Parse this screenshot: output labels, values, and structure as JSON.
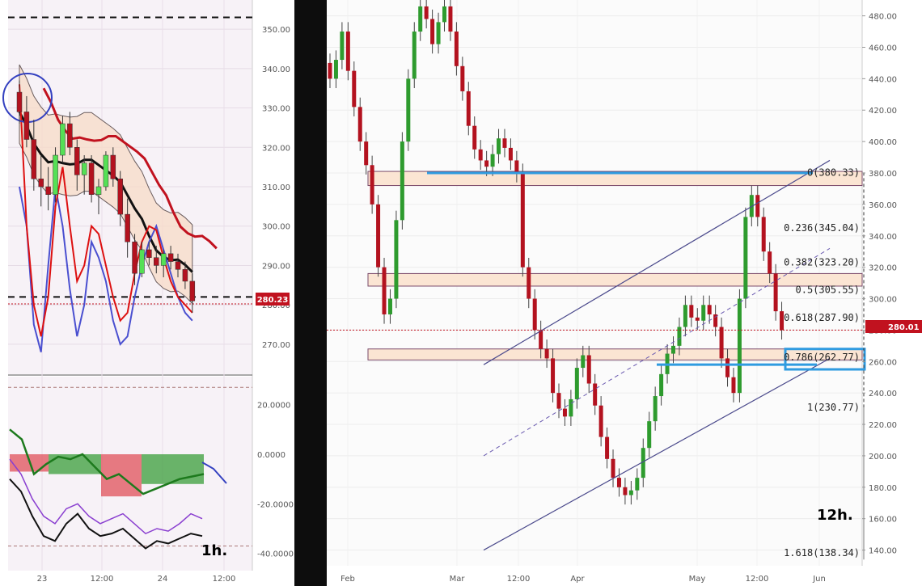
{
  "chart_data": [
    {
      "type": "candlestick",
      "panel": "1h",
      "timeframe_label": "1h.",
      "y_ticks": [
        "350.00",
        "340.00",
        "330.00",
        "320.00",
        "310.00",
        "300.00",
        "290.00",
        "280.00",
        "270.00"
      ],
      "ylim": [
        263,
        357
      ],
      "x_ticks": [
        "23",
        "12:00",
        "24",
        "12:00"
      ],
      "last_price": "280.23",
      "resistance_dashed": 353,
      "support_dashed": 282,
      "candles": [
        [
          334,
          337,
          326,
          329
        ],
        [
          329,
          333,
          320,
          322
        ],
        [
          322,
          327,
          309,
          312
        ],
        [
          312,
          318,
          305,
          310
        ],
        [
          310,
          315,
          304,
          308
        ],
        [
          308,
          320,
          306,
          318
        ],
        [
          318,
          328,
          316,
          326
        ],
        [
          326,
          329,
          318,
          320
        ],
        [
          320,
          322,
          309,
          313
        ],
        [
          313,
          318,
          308,
          316
        ],
        [
          316,
          318,
          306,
          308
        ],
        [
          308,
          312,
          303,
          310
        ],
        [
          310,
          319,
          309,
          318
        ],
        [
          318,
          320,
          310,
          312
        ],
        [
          312,
          314,
          300,
          303
        ],
        [
          303,
          307,
          292,
          296
        ],
        [
          296,
          298,
          285,
          288
        ],
        [
          288,
          296,
          287,
          294
        ],
        [
          294,
          296,
          290,
          292
        ],
        [
          292,
          295,
          288,
          290
        ],
        [
          290,
          294,
          287,
          293
        ],
        [
          293,
          295,
          289,
          291
        ],
        [
          291,
          293,
          287,
          289
        ],
        [
          289,
          291,
          284,
          286
        ],
        [
          286,
          288,
          278,
          281
        ]
      ],
      "oscillator": {
        "y_ticks": [
          "20.0000",
          "0.0000",
          "-20.0000",
          "-40.0000"
        ],
        "ylim": [
          -45,
          30
        ]
      }
    },
    {
      "type": "candlestick",
      "panel": "12h",
      "timeframe_label": "12h.",
      "y_ticks": [
        "480.00",
        "460.00",
        "440.00",
        "420.00",
        "400.00",
        "380.00",
        "360.00",
        "340.00",
        "320.00",
        "300.00",
        "280.00",
        "260.00",
        "240.00",
        "220.00",
        "200.00",
        "180.00",
        "160.00",
        "140.00"
      ],
      "ylim": [
        130,
        487
      ],
      "x_ticks": [
        "Feb",
        "Mar",
        "12:00",
        "Apr",
        "May",
        "12:00",
        "Jun"
      ],
      "last_price": "280.01",
      "closes": [
        440,
        452,
        470,
        445,
        422,
        400,
        385,
        360,
        320,
        290,
        300,
        350,
        400,
        440,
        470,
        486,
        478,
        462,
        476,
        486,
        470,
        448,
        432,
        410,
        395,
        388,
        384,
        392,
        402,
        396,
        388,
        380,
        320,
        300,
        280,
        268,
        262,
        240,
        230,
        225,
        236,
        256,
        264,
        246,
        232,
        212,
        198,
        186,
        180,
        175,
        178,
        186,
        205,
        222,
        238,
        252,
        265,
        270,
        282,
        296,
        288,
        286,
        296,
        290,
        282,
        262,
        250,
        240,
        300,
        352,
        366,
        352,
        330,
        316,
        292,
        280
      ],
      "fibonacci": [
        {
          "level": "0",
          "price": 380.33,
          "label": "0(380.33)"
        },
        {
          "level": "0.236",
          "price": 345.04,
          "label": "0.236(345.04)"
        },
        {
          "level": "0.382",
          "price": 323.2,
          "label": "0.382(323.20)"
        },
        {
          "level": "0.5",
          "price": 305.55,
          "label": "0.5(305.55)"
        },
        {
          "level": "0.618",
          "price": 287.9,
          "label": "0.618(287.90)"
        },
        {
          "level": "0.786",
          "price": 262.77,
          "label": "0.786(262.77)"
        },
        {
          "level": "1",
          "price": 230.77,
          "label": "1(230.77)"
        },
        {
          "level": "1.618",
          "price": 138.34,
          "label": "1.618(138.34)"
        }
      ],
      "zones": [
        [
          372,
          381
        ],
        [
          308,
          316
        ],
        [
          261,
          268
        ]
      ]
    }
  ],
  "colors": {
    "bull": "#2e9b2e",
    "bear": "#b3121f",
    "channel": "#4b4a8c",
    "zone_fill": "#fbe5d3",
    "highlight": "#2f9be0",
    "price_tag": "#c1121f",
    "separator": "#111111"
  }
}
